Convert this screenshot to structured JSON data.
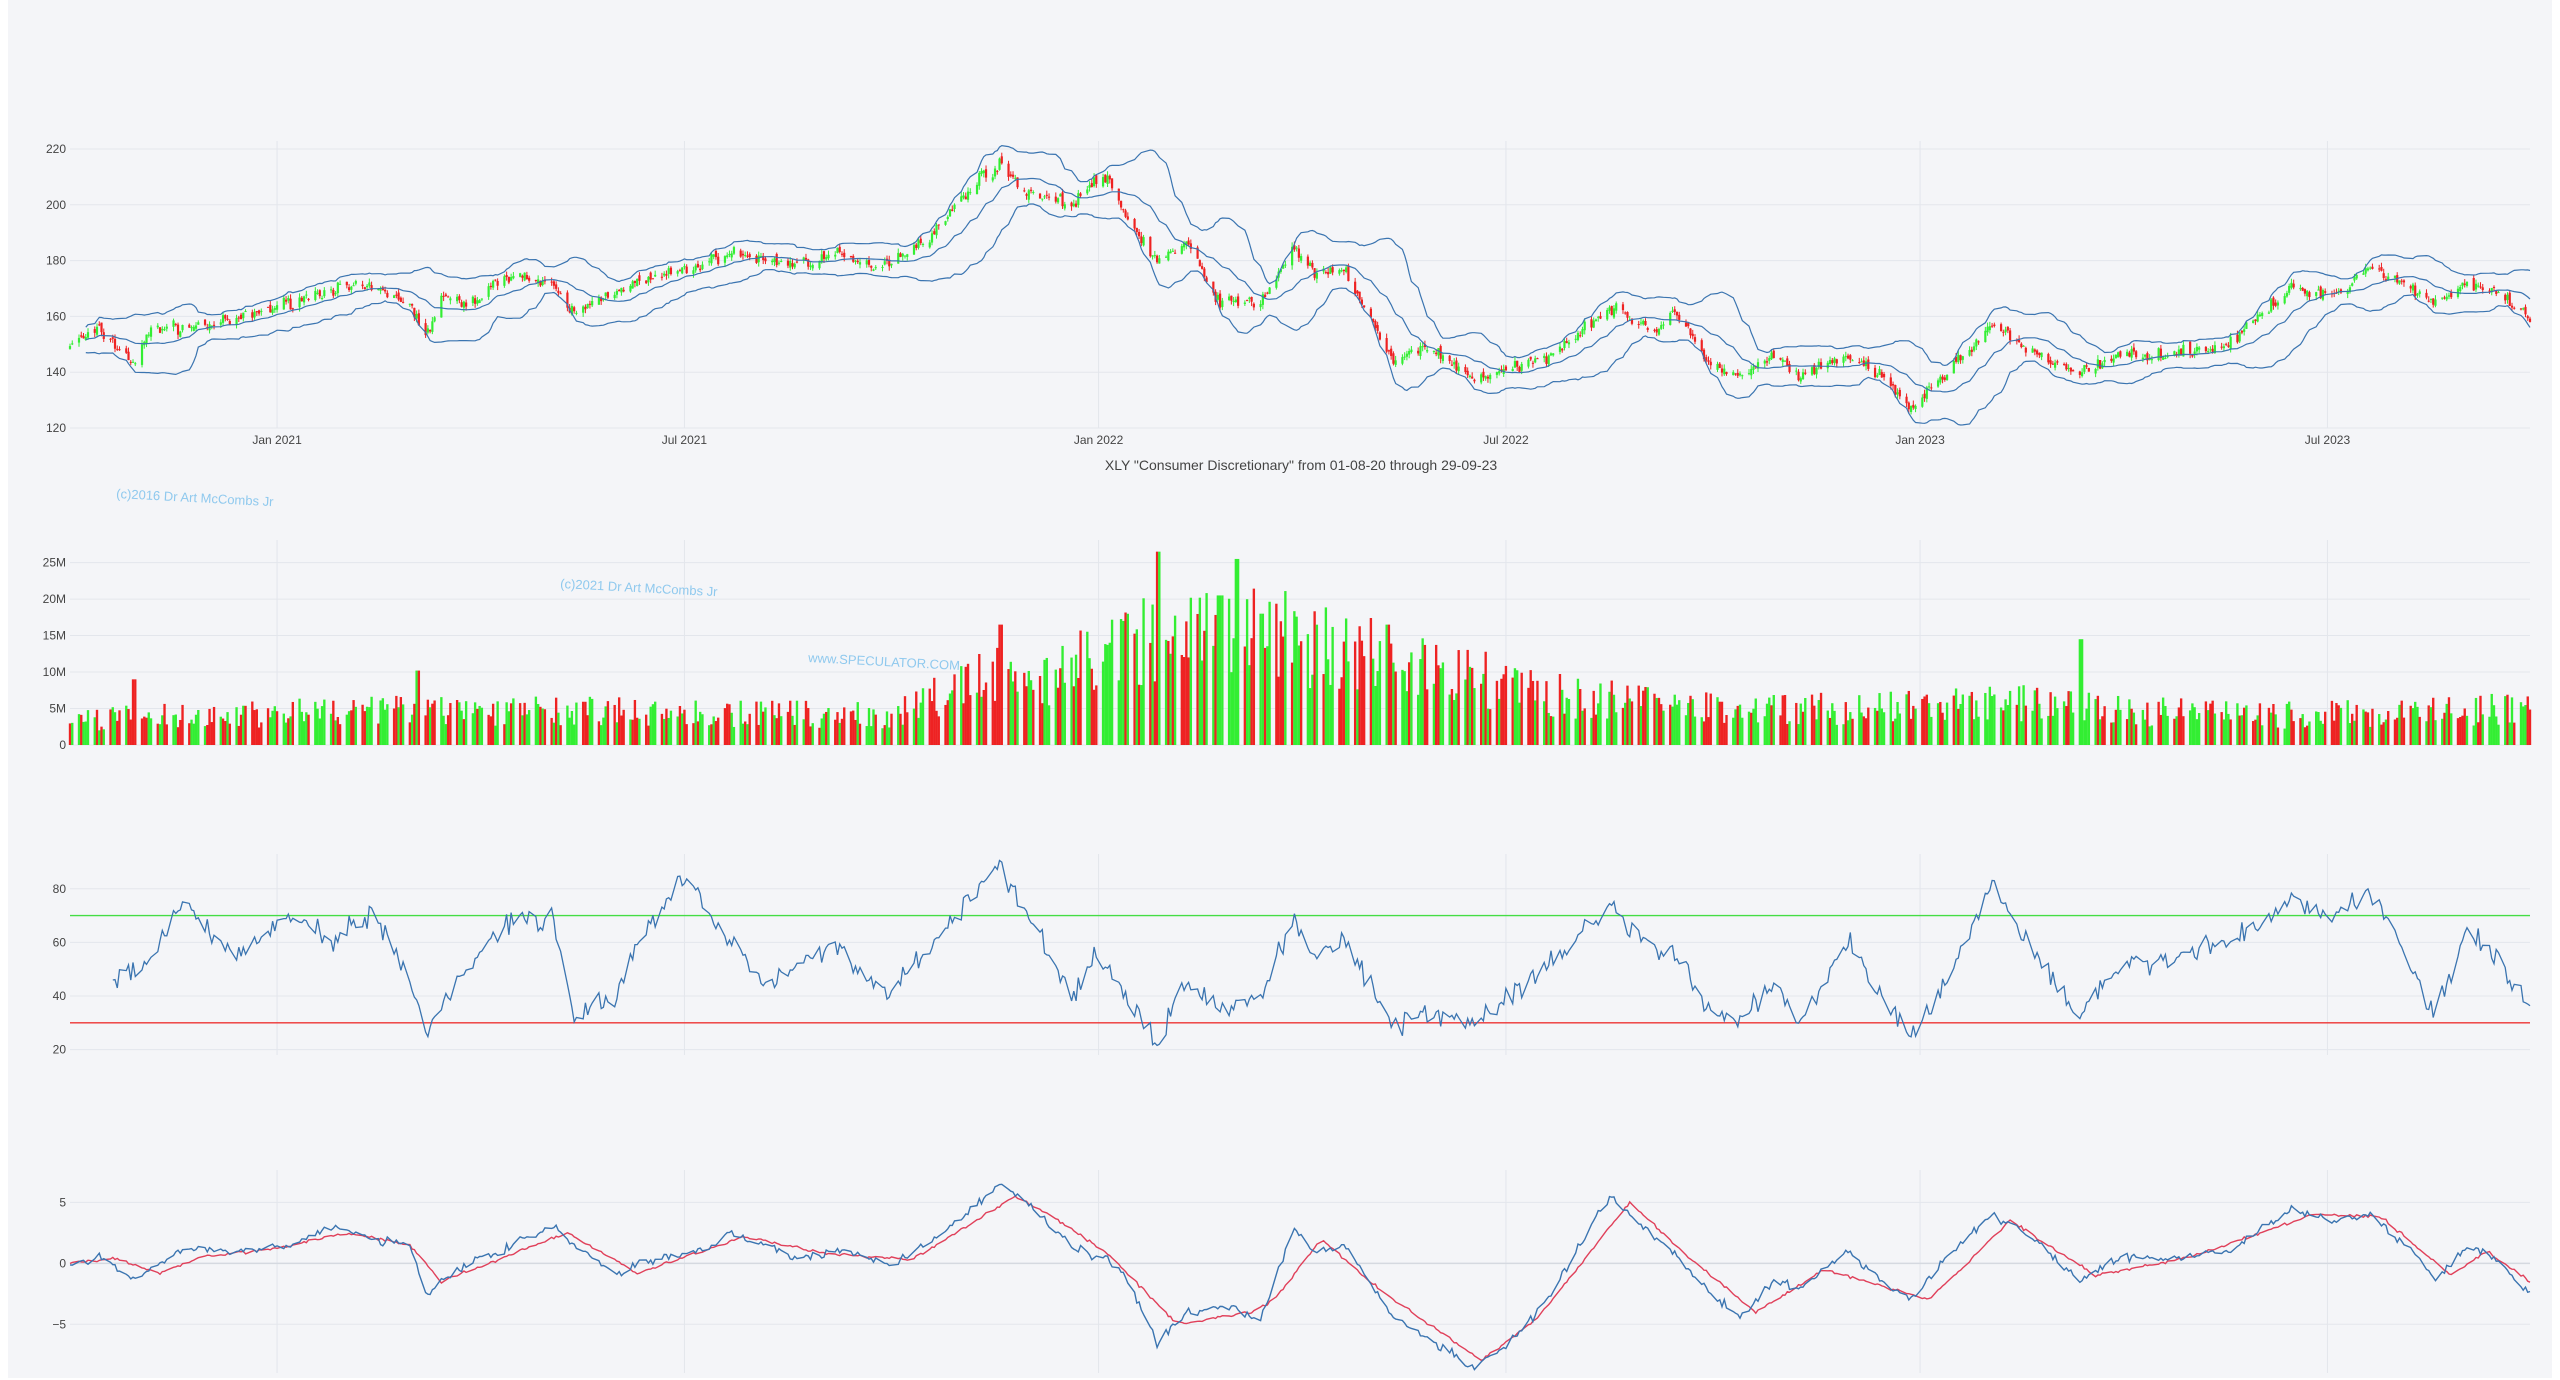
{
  "colors": {
    "up": "#33ee33",
    "down": "#ee2222",
    "bollinger": "#3a74b0",
    "rsi": "#3a74b0",
    "macd": "#3a74b0",
    "signal": "#e0405a",
    "overbought": "#44dd44",
    "oversold": "#ee3333",
    "background": "#f4f5f8"
  },
  "watermarks": [
    "(c)2016 Dr Art McCombs Jr",
    "(c)2021 Dr Art McCombs Jr",
    "www.SPECULATOR.COM"
  ],
  "chart_data": [
    {
      "type": "candlestick",
      "title": "XLY \"Consumer Discretionary\" from 01-08-20 through 29-09-23",
      "x_ticks": [
        "Jan 2021",
        "Jul 2021",
        "Jan 2022",
        "Jul 2022",
        "Jan 2023",
        "Jul 2023"
      ],
      "y_ticks": [
        "120",
        "140",
        "160",
        "180",
        "200",
        "220"
      ],
      "ylim": [
        120,
        220
      ],
      "overlays": [
        "upper band",
        "middle band",
        "lower band"
      ],
      "close_keypoints": [
        [
          "2020-10-01",
          150
        ],
        [
          "2020-10-14",
          155
        ],
        [
          "2020-10-30",
          143
        ],
        [
          "2020-11-06",
          156
        ],
        [
          "2020-11-20",
          156
        ],
        [
          "2020-12-11",
          158
        ],
        [
          "2021-01-06",
          165
        ],
        [
          "2021-01-26",
          170
        ],
        [
          "2021-02-12",
          170
        ],
        [
          "2021-03-01",
          165
        ],
        [
          "2021-03-08",
          152
        ],
        [
          "2021-03-15",
          167
        ],
        [
          "2021-03-26",
          164
        ],
        [
          "2021-04-16",
          176
        ],
        [
          "2021-05-04",
          170
        ],
        [
          "2021-05-13",
          161
        ],
        [
          "2021-06-01",
          170
        ],
        [
          "2021-06-11",
          172
        ],
        [
          "2021-07-07",
          178
        ],
        [
          "2021-07-21",
          183
        ],
        [
          "2021-08-06",
          180
        ],
        [
          "2021-08-20",
          179
        ],
        [
          "2021-09-07",
          182
        ],
        [
          "2021-09-21",
          178
        ],
        [
          "2021-10-01",
          180
        ],
        [
          "2021-10-20",
          190
        ],
        [
          "2021-11-09",
          210
        ],
        [
          "2021-11-18",
          214
        ],
        [
          "2021-11-30",
          205
        ],
        [
          "2021-12-20",
          200
        ],
        [
          "2021-12-30",
          208
        ],
        [
          "2022-01-04",
          210
        ],
        [
          "2022-01-13",
          196
        ],
        [
          "2022-01-27",
          180
        ],
        [
          "2022-02-09",
          186
        ],
        [
          "2022-02-24",
          165
        ],
        [
          "2022-03-14",
          165
        ],
        [
          "2022-03-29",
          185
        ],
        [
          "2022-04-07",
          175
        ],
        [
          "2022-04-21",
          176
        ],
        [
          "2022-05-12",
          143
        ],
        [
          "2022-05-26",
          150
        ],
        [
          "2022-06-16",
          138
        ],
        [
          "2022-06-30",
          140
        ],
        [
          "2022-07-18",
          145
        ],
        [
          "2022-08-16",
          163
        ],
        [
          "2022-09-06",
          155
        ],
        [
          "2022-09-13",
          162
        ],
        [
          "2022-09-30",
          143
        ],
        [
          "2022-10-13",
          138
        ],
        [
          "2022-10-28",
          146
        ],
        [
          "2022-11-09",
          138
        ],
        [
          "2022-11-30",
          146
        ],
        [
          "2022-12-15",
          138
        ],
        [
          "2022-12-28",
          127
        ],
        [
          "2023-01-13",
          140
        ],
        [
          "2023-02-02",
          157
        ],
        [
          "2023-02-21",
          146
        ],
        [
          "2023-03-13",
          140
        ],
        [
          "2023-03-31",
          146
        ],
        [
          "2023-04-26",
          147
        ],
        [
          "2023-05-18",
          150
        ],
        [
          "2023-06-15",
          170
        ],
        [
          "2023-07-05",
          168
        ],
        [
          "2023-07-20",
          178
        ],
        [
          "2023-08-08",
          170
        ],
        [
          "2023-08-18",
          165
        ],
        [
          "2023-09-01",
          172
        ],
        [
          "2023-09-14",
          168
        ],
        [
          "2023-09-29",
          159
        ]
      ]
    },
    {
      "type": "bar",
      "name": "volume",
      "y_ticks": [
        "0",
        "5M",
        "10M",
        "15M",
        "20M",
        "25M"
      ],
      "ylim": [
        0,
        27000000
      ],
      "value_keypoints": [
        [
          "2020-10-01",
          3500000
        ],
        [
          "2021-03-01",
          5000000
        ],
        [
          "2021-10-01",
          4000000
        ],
        [
          "2021-11-10",
          9000000
        ],
        [
          "2021-12-15",
          10000000
        ],
        [
          "2022-01-25",
          15000000
        ],
        [
          "2022-03-01",
          16000000
        ],
        [
          "2022-05-15",
          12000000
        ],
        [
          "2022-07-15",
          7000000
        ],
        [
          "2022-10-01",
          5000000
        ],
        [
          "2022-12-15",
          5000000
        ],
        [
          "2023-03-01",
          6000000
        ],
        [
          "2023-03-15",
          5000000
        ],
        [
          "2023-06-01",
          4000000
        ],
        [
          "2023-09-29",
          5000000
        ]
      ],
      "peaks": [
        [
          "2022-01-28",
          26500000
        ],
        [
          "2022-03-04",
          25500000
        ],
        [
          "2022-02-24",
          20500000
        ],
        [
          "2022-03-14",
          18000000
        ],
        [
          "2021-11-19",
          16500000
        ],
        [
          "2023-03-13",
          14500000
        ],
        [
          "2022-05-09",
          16500000
        ],
        [
          "2021-03-05",
          10200000
        ],
        [
          "2020-10-30",
          9000000
        ]
      ]
    },
    {
      "type": "line",
      "name": "RSI",
      "y_ticks": [
        "20",
        "40",
        "60",
        "80"
      ],
      "ylim": [
        18,
        90
      ],
      "reference_lines": [
        70,
        30
      ],
      "value_keypoints": [
        [
          "2020-10-20",
          45
        ],
        [
          "2020-11-06",
          55
        ],
        [
          "2020-11-20",
          75
        ],
        [
          "2020-12-01",
          65
        ],
        [
          "2020-12-15",
          55
        ],
        [
          "2021-01-06",
          72
        ],
        [
          "2021-01-26",
          60
        ],
        [
          "2021-02-12",
          72
        ],
        [
          "2021-03-01",
          45
        ],
        [
          "2021-03-08",
          28
        ],
        [
          "2021-03-26",
          50
        ],
        [
          "2021-04-16",
          70
        ],
        [
          "2021-05-04",
          68
        ],
        [
          "2021-05-13",
          33
        ],
        [
          "2021-06-01",
          40
        ],
        [
          "2021-06-11",
          62
        ],
        [
          "2021-07-01",
          84
        ],
        [
          "2021-07-14",
          68
        ],
        [
          "2021-08-06",
          45
        ],
        [
          "2021-08-20",
          50
        ],
        [
          "2021-09-07",
          60
        ],
        [
          "2021-09-21",
          45
        ],
        [
          "2021-10-01",
          42
        ],
        [
          "2021-10-20",
          60
        ],
        [
          "2021-11-09",
          80
        ],
        [
          "2021-11-18",
          90
        ],
        [
          "2021-11-30",
          70
        ],
        [
          "2021-12-20",
          40
        ],
        [
          "2021-12-30",
          55
        ],
        [
          "2022-01-13",
          40
        ],
        [
          "2022-01-27",
          22
        ],
        [
          "2022-02-09",
          45
        ],
        [
          "2022-02-24",
          35
        ],
        [
          "2022-03-14",
          40
        ],
        [
          "2022-03-29",
          70
        ],
        [
          "2022-04-07",
          55
        ],
        [
          "2022-04-21",
          60
        ],
        [
          "2022-05-12",
          28
        ],
        [
          "2022-05-26",
          35
        ],
        [
          "2022-06-16",
          30
        ],
        [
          "2022-06-30",
          38
        ],
        [
          "2022-07-18",
          50
        ],
        [
          "2022-08-16",
          74
        ],
        [
          "2022-09-06",
          55
        ],
        [
          "2022-09-13",
          58
        ],
        [
          "2022-09-30",
          35
        ],
        [
          "2022-10-13",
          30
        ],
        [
          "2022-10-28",
          45
        ],
        [
          "2022-11-09",
          30
        ],
        [
          "2022-11-30",
          60
        ],
        [
          "2022-12-15",
          40
        ],
        [
          "2022-12-28",
          25
        ],
        [
          "2023-01-13",
          45
        ],
        [
          "2023-02-02",
          82
        ],
        [
          "2023-02-21",
          55
        ],
        [
          "2023-03-13",
          33
        ],
        [
          "2023-03-31",
          50
        ],
        [
          "2023-04-26",
          55
        ],
        [
          "2023-05-18",
          60
        ],
        [
          "2023-06-15",
          75
        ],
        [
          "2023-07-05",
          70
        ],
        [
          "2023-07-20",
          80
        ],
        [
          "2023-08-08",
          50
        ],
        [
          "2023-08-18",
          33
        ],
        [
          "2023-09-01",
          65
        ],
        [
          "2023-09-14",
          55
        ],
        [
          "2023-09-29",
          35
        ]
      ]
    },
    {
      "type": "line",
      "name": "MACD",
      "y_ticks": [
        "−5",
        "0",
        "5"
      ],
      "ylim": [
        -9,
        7
      ],
      "series": [
        {
          "name": "macd",
          "value_keypoints": [
            [
              "2020-10-01",
              0
            ],
            [
              "2020-10-14",
              0.5
            ],
            [
              "2020-10-30",
              -1.5
            ],
            [
              "2020-11-06",
              -0.5
            ],
            [
              "2020-11-20",
              1.2
            ],
            [
              "2020-12-11",
              1.0
            ],
            [
              "2021-01-06",
              1.5
            ],
            [
              "2021-01-26",
              3.0
            ],
            [
              "2021-02-12",
              2.0
            ],
            [
              "2021-03-01",
              1.5
            ],
            [
              "2021-03-08",
              -2.5
            ],
            [
              "2021-03-26",
              0
            ],
            [
              "2021-04-16",
              1.5
            ],
            [
              "2021-05-04",
              3.0
            ],
            [
              "2021-05-13",
              1.5
            ],
            [
              "2021-06-01",
              -1.0
            ],
            [
              "2021-06-11",
              0
            ],
            [
              "2021-07-07",
              1.0
            ],
            [
              "2021-07-21",
              2.5
            ],
            [
              "2021-08-06",
              1.5
            ],
            [
              "2021-08-20",
              0.5
            ],
            [
              "2021-09-07",
              1.0
            ],
            [
              "2021-09-21",
              0.5
            ],
            [
              "2021-10-01",
              0
            ],
            [
              "2021-10-20",
              2.0
            ],
            [
              "2021-11-09",
              5.0
            ],
            [
              "2021-11-18",
              6.5
            ],
            [
              "2021-11-30",
              5.0
            ],
            [
              "2021-12-20",
              1.5
            ],
            [
              "2021-12-30",
              0.5
            ],
            [
              "2022-01-04",
              0.5
            ],
            [
              "2022-01-13",
              -1.0
            ],
            [
              "2022-01-27",
              -6.5
            ],
            [
              "2022-02-09",
              -4.0
            ],
            [
              "2022-02-24",
              -3.5
            ],
            [
              "2022-03-14",
              -4.5
            ],
            [
              "2022-03-29",
              3.0
            ],
            [
              "2022-04-07",
              1.0
            ],
            [
              "2022-04-21",
              1.5
            ],
            [
              "2022-05-12",
              -4.5
            ],
            [
              "2022-05-26",
              -6.0
            ],
            [
              "2022-06-16",
              -8.5
            ],
            [
              "2022-06-30",
              -7.0
            ],
            [
              "2022-07-18",
              -3.5
            ],
            [
              "2022-08-16",
              5.5
            ],
            [
              "2022-09-06",
              2.0
            ],
            [
              "2022-09-13",
              1.0
            ],
            [
              "2022-09-30",
              -2.5
            ],
            [
              "2022-10-13",
              -4.5
            ],
            [
              "2022-10-28",
              -1.5
            ],
            [
              "2022-11-09",
              -2.0
            ],
            [
              "2022-11-30",
              1.0
            ],
            [
              "2022-12-15",
              -1.5
            ],
            [
              "2022-12-28",
              -3.0
            ],
            [
              "2023-01-13",
              0.5
            ],
            [
              "2023-02-02",
              4.0
            ],
            [
              "2023-02-21",
              2.0
            ],
            [
              "2023-03-13",
              -1.5
            ],
            [
              "2023-03-31",
              0.5
            ],
            [
              "2023-04-26",
              0.5
            ],
            [
              "2023-05-18",
              1.0
            ],
            [
              "2023-06-15",
              4.5
            ],
            [
              "2023-07-05",
              3.5
            ],
            [
              "2023-07-20",
              4.0
            ],
            [
              "2023-08-08",
              1.0
            ],
            [
              "2023-08-18",
              -1.5
            ],
            [
              "2023-09-01",
              1.5
            ],
            [
              "2023-09-14",
              0.5
            ],
            [
              "2023-09-29",
              -2.5
            ]
          ]
        },
        {
          "name": "signal",
          "value_keypoints": [
            [
              "2020-10-01",
              0
            ],
            [
              "2020-10-20",
              0.4
            ],
            [
              "2020-11-10",
              -0.8
            ],
            [
              "2020-11-30",
              0.6
            ],
            [
              "2021-01-01",
              1.2
            ],
            [
              "2021-02-01",
              2.5
            ],
            [
              "2021-03-01",
              1.5
            ],
            [
              "2021-03-15",
              -1.5
            ],
            [
              "2021-04-05",
              0
            ],
            [
              "2021-05-10",
              2.5
            ],
            [
              "2021-06-10",
              -0.8
            ],
            [
              "2021-07-01",
              0.5
            ],
            [
              "2021-07-28",
              2.2
            ],
            [
              "2021-09-01",
              0.8
            ],
            [
              "2021-10-10",
              0.3
            ],
            [
              "2021-11-25",
              5.5
            ],
            [
              "2021-12-10",
              4.0
            ],
            [
              "2022-01-05",
              0.8
            ],
            [
              "2022-02-05",
              -5.0
            ],
            [
              "2022-03-10",
              -4.0
            ],
            [
              "2022-03-20",
              -3.0
            ],
            [
              "2022-04-10",
              2.0
            ],
            [
              "2022-05-05",
              -2.0
            ],
            [
              "2022-06-20",
              -8.0
            ],
            [
              "2022-07-15",
              -4.5
            ],
            [
              "2022-08-25",
              5.0
            ],
            [
              "2022-09-20",
              0.5
            ],
            [
              "2022-10-20",
              -4.0
            ],
            [
              "2022-11-20",
              -0.5
            ],
            [
              "2023-01-05",
              -3.0
            ],
            [
              "2023-02-10",
              3.5
            ],
            [
              "2023-03-20",
              -1.0
            ],
            [
              "2023-05-01",
              0.5
            ],
            [
              "2023-06-25",
              4.0
            ],
            [
              "2023-07-25",
              3.8
            ],
            [
              "2023-08-25",
              -1.0
            ],
            [
              "2023-09-10",
              1.0
            ],
            [
              "2023-09-29",
              -1.5
            ]
          ]
        }
      ]
    }
  ]
}
